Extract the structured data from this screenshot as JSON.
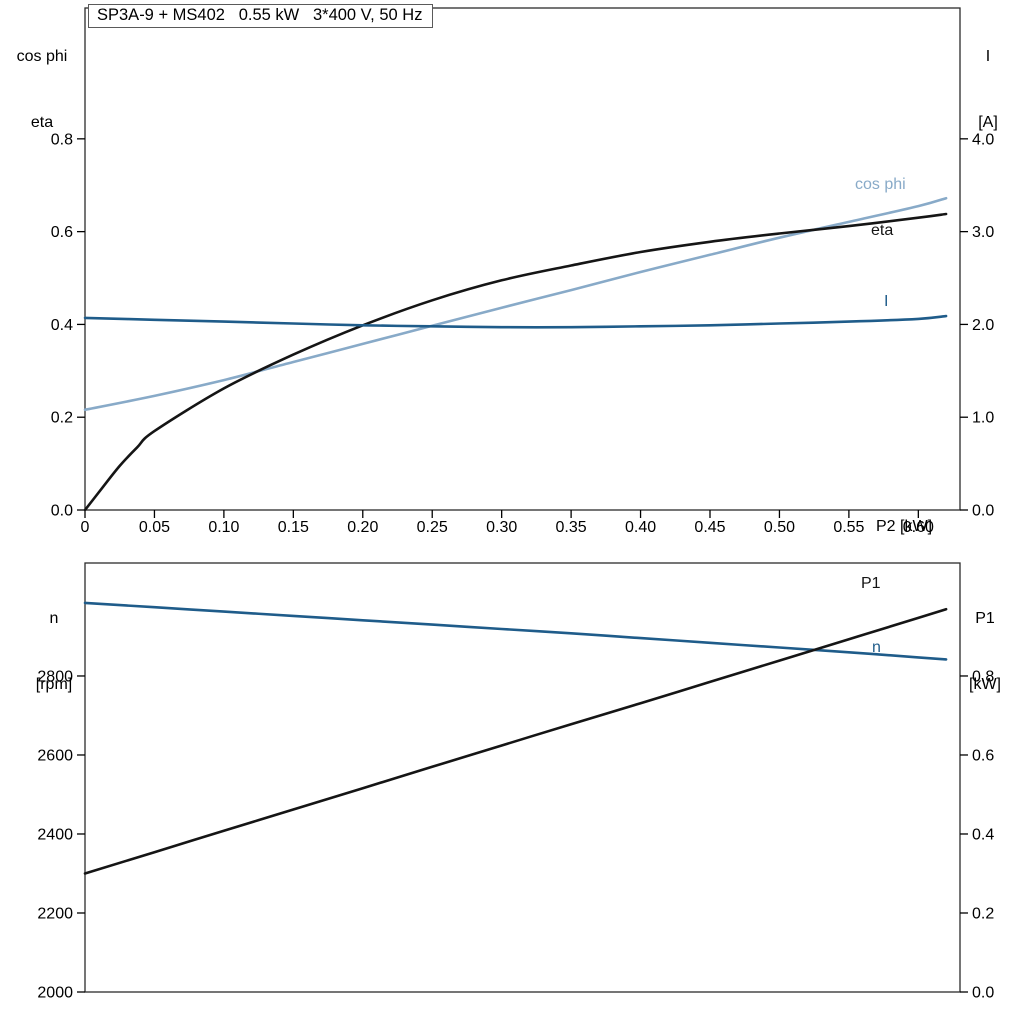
{
  "title_box": {
    "text": "SP3A-9 + MS402   0.55 kW   3*400 V, 50 Hz"
  },
  "colors": {
    "black": "#151515",
    "blue": "#1f5c8a",
    "lightblue": "#88aac8",
    "frame": "#2b2b2b"
  },
  "labels": {
    "top_left_axis_line1": "cos phi",
    "top_left_axis_line2": "eta",
    "top_right_axis_line1": "I",
    "top_right_axis_line2": "[A]",
    "x_axis_title": "P2 [kW]",
    "bottom_left_axis_line1": "n",
    "bottom_left_axis_line2": "[rpm]",
    "bottom_right_axis_line1": "P1",
    "bottom_right_axis_line2": "[kW]",
    "curve_cos_phi": "cos phi",
    "curve_eta": "eta",
    "curve_current": "I",
    "curve_p1": "P1",
    "curve_n": "n"
  },
  "chart_data": [
    {
      "type": "line",
      "title": "SP3A-9 + MS402   0.55 kW   3*400 V, 50 Hz",
      "xlabel": "P2 [kW]",
      "ylabel_left": "cos phi / eta",
      "ylabel_right": "I [A]",
      "grid": false,
      "legend_position": "inline-right",
      "xlim": [
        0,
        0.63
      ],
      "ylim_left": [
        0,
        1.082
      ],
      "ylim_right": [
        0,
        5.41
      ],
      "x_ticks": [
        0,
        0.05,
        0.1,
        0.15,
        0.2,
        0.25,
        0.3,
        0.35,
        0.4,
        0.45,
        0.5,
        0.55,
        0.6
      ],
      "x_tick_labels": [
        "0",
        "0.05",
        "0.10",
        "0.15",
        "0.20",
        "0.25",
        "0.30",
        "0.35",
        "0.40",
        "0.45",
        "0.50",
        "0.55",
        "0.60"
      ],
      "left_ticks": [
        0.0,
        0.2,
        0.4,
        0.6,
        0.8
      ],
      "left_tick_labels": [
        "0.0",
        "0.2",
        "0.4",
        "0.6",
        "0.8"
      ],
      "right_ticks": [
        0.0,
        1.0,
        2.0,
        3.0,
        4.0
      ],
      "right_tick_labels": [
        "0.0",
        "1.0",
        "2.0",
        "3.0",
        "4.0"
      ],
      "series": [
        {
          "name": "cos phi",
          "axis": "left",
          "color_key": "lightblue",
          "x": [
            0,
            0.05,
            0.1,
            0.15,
            0.2,
            0.25,
            0.3,
            0.35,
            0.4,
            0.45,
            0.5,
            0.55,
            0.6,
            0.62
          ],
          "y": [
            0.216,
            0.246,
            0.28,
            0.319,
            0.358,
            0.397,
            0.436,
            0.474,
            0.513,
            0.55,
            0.587,
            0.621,
            0.655,
            0.672
          ]
        },
        {
          "name": "eta",
          "axis": "left",
          "color_key": "black",
          "x": [
            0,
            0.0125,
            0.025,
            0.0375,
            0.05,
            0.1,
            0.15,
            0.2,
            0.25,
            0.3,
            0.35,
            0.4,
            0.45,
            0.5,
            0.55,
            0.6,
            0.62
          ],
          "y": [
            0.0,
            0.048,
            0.095,
            0.135,
            0.17,
            0.262,
            0.335,
            0.398,
            0.452,
            0.495,
            0.527,
            0.556,
            0.578,
            0.596,
            0.612,
            0.63,
            0.638
          ]
        },
        {
          "name": "I",
          "axis": "right",
          "color_key": "blue",
          "x": [
            0,
            0.05,
            0.1,
            0.15,
            0.2,
            0.25,
            0.3,
            0.35,
            0.4,
            0.45,
            0.5,
            0.55,
            0.6,
            0.62
          ],
          "y": [
            2.07,
            2.05,
            2.03,
            2.01,
            1.99,
            1.98,
            1.97,
            1.97,
            1.98,
            1.99,
            2.01,
            2.03,
            2.06,
            2.09
          ]
        }
      ]
    },
    {
      "type": "line",
      "title": "",
      "xlabel": "P2 [kW]",
      "ylabel_left": "n [rpm]",
      "ylabel_right": "P1 [kW]",
      "grid": false,
      "legend_position": "inline-right",
      "xlim": [
        0,
        0.63
      ],
      "ylim_left": [
        2000,
        3086
      ],
      "ylim_right": [
        0,
        1.086
      ],
      "x_ticks": [],
      "x_tick_labels": [],
      "left_ticks": [
        2000,
        2200,
        2400,
        2600,
        2800
      ],
      "left_tick_labels": [
        "2000",
        "2200",
        "2400",
        "2600",
        "2800"
      ],
      "right_ticks": [
        0.0,
        0.2,
        0.4,
        0.6,
        0.8
      ],
      "right_tick_labels": [
        "0.0",
        "0.2",
        "0.4",
        "0.6",
        "0.8"
      ],
      "series": [
        {
          "name": "n",
          "axis": "left",
          "color_key": "blue",
          "x": [
            0,
            0.05,
            0.1,
            0.15,
            0.2,
            0.25,
            0.3,
            0.35,
            0.4,
            0.45,
            0.5,
            0.55,
            0.6,
            0.62
          ],
          "y": [
            2985,
            2974,
            2963,
            2952,
            2941,
            2930,
            2919,
            2908,
            2896,
            2884,
            2872,
            2860,
            2847,
            2842
          ]
        },
        {
          "name": "P1",
          "axis": "right",
          "color_key": "black",
          "x": [
            0,
            0.05,
            0.1,
            0.15,
            0.2,
            0.25,
            0.3,
            0.35,
            0.4,
            0.45,
            0.5,
            0.55,
            0.6,
            0.62
          ],
          "y": [
            0.3,
            0.354,
            0.408,
            0.462,
            0.516,
            0.57,
            0.624,
            0.678,
            0.731,
            0.785,
            0.839,
            0.893,
            0.947,
            0.969
          ]
        }
      ]
    }
  ]
}
